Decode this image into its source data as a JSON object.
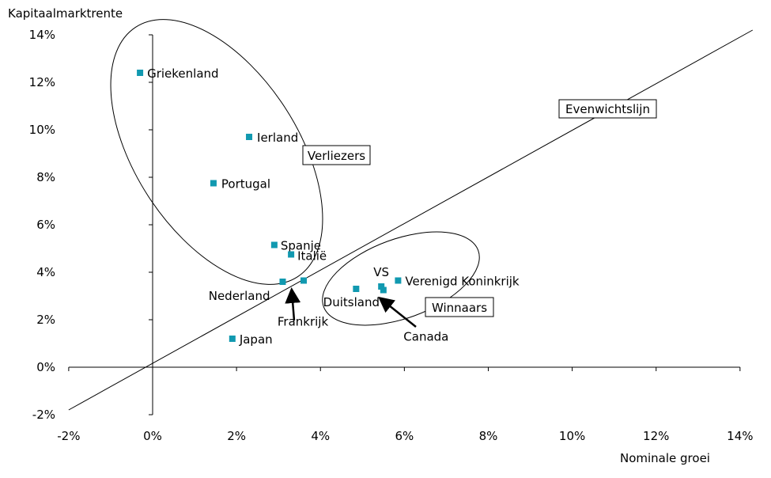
{
  "chart_data": {
    "type": "scatter",
    "title": "",
    "xlabel": "Nominale groei",
    "ylabel": "Kapitaalmarktrente",
    "xlim": [
      -2,
      14
    ],
    "ylim": [
      -2,
      14
    ],
    "x_ticks": [
      "-2%",
      "0%",
      "2%",
      "4%",
      "6%",
      "8%",
      "10%",
      "12%",
      "14%"
    ],
    "y_ticks": [
      "-2%",
      "0%",
      "2%",
      "4%",
      "6%",
      "8%",
      "10%",
      "12%",
      "14%"
    ],
    "grid": false,
    "marker_color": "#1199b0",
    "points": [
      {
        "label": "Griekenland",
        "x": -0.3,
        "y": 12.4
      },
      {
        "label": "Ierland",
        "x": 2.3,
        "y": 9.7
      },
      {
        "label": "Portugal",
        "x": 1.45,
        "y": 7.75
      },
      {
        "label": "Spanje",
        "x": 2.9,
        "y": 5.15
      },
      {
        "label": "Italië",
        "x": 3.3,
        "y": 4.75
      },
      {
        "label": "Nederland",
        "x": 3.1,
        "y": 3.6
      },
      {
        "label": "Frankrijk",
        "x": 3.6,
        "y": 3.65
      },
      {
        "label": "Japan",
        "x": 1.9,
        "y": 1.2
      },
      {
        "label": "Duitsland",
        "x": 4.85,
        "y": 3.3
      },
      {
        "label": "VS",
        "x": 5.45,
        "y": 3.4
      },
      {
        "label": "Canada",
        "x": 5.5,
        "y": 3.25
      },
      {
        "label": "Verenigd Koninkrijk",
        "x": 5.85,
        "y": 3.65
      }
    ],
    "reference_line": {
      "label": "Evenwichtslijn",
      "x": [
        -2,
        14.3
      ],
      "y": [
        -1.8,
        14.2
      ]
    },
    "groups": [
      {
        "label": "Verliezers"
      },
      {
        "label": "Winnaars"
      }
    ]
  }
}
